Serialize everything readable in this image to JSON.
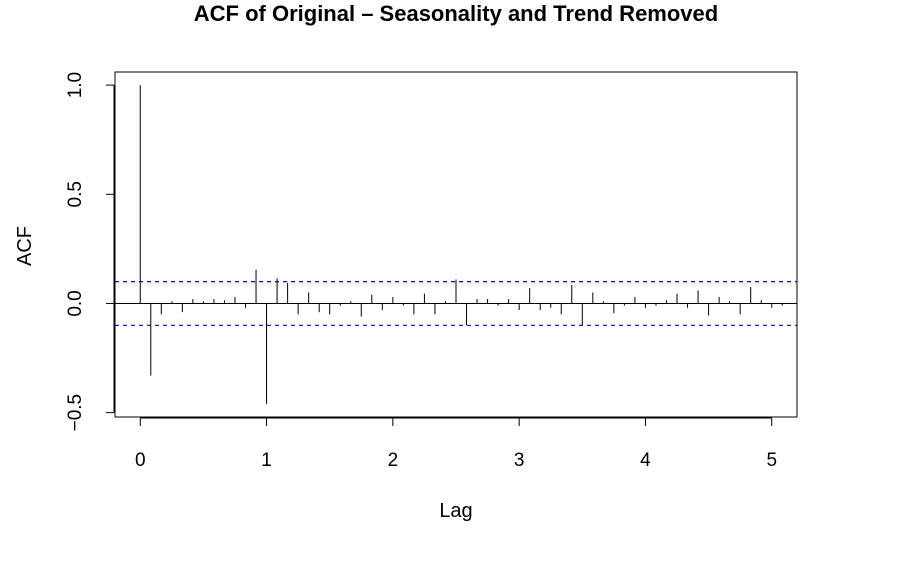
{
  "chart_data": {
    "type": "bar",
    "title": "ACF of Original – Seasonality and Trend Removed",
    "xlabel": "Lag",
    "ylabel": "ACF",
    "xlim": [
      -0.2,
      5.2
    ],
    "ylim": [
      -0.52,
      1.06
    ],
    "x_ticks": [
      0,
      1,
      2,
      3,
      4,
      5
    ],
    "x_tick_labels": [
      "0",
      "1",
      "2",
      "3",
      "4",
      "5"
    ],
    "y_ticks": [
      -0.5,
      0.0,
      0.5,
      1.0
    ],
    "y_tick_labels": [
      "−0.5",
      "0.0",
      "0.5",
      "1.0"
    ],
    "confidence_bounds": [
      0.1,
      -0.1
    ],
    "confidence_color": "#0000cc",
    "lag_step": 0.0833333,
    "values": [
      1.0,
      -0.33,
      -0.05,
      0.01,
      -0.04,
      0.02,
      0.01,
      0.02,
      0.015,
      0.03,
      -0.02,
      0.155,
      -0.46,
      0.115,
      0.095,
      -0.05,
      0.05,
      -0.04,
      -0.05,
      -0.01,
      0.01,
      -0.06,
      0.04,
      -0.03,
      0.03,
      -0.01,
      -0.05,
      0.045,
      -0.05,
      0.01,
      0.11,
      -0.1,
      0.02,
      0.02,
      -0.01,
      0.02,
      -0.03,
      0.07,
      -0.03,
      -0.02,
      -0.05,
      0.085,
      -0.1,
      0.05,
      0.01,
      -0.045,
      -0.01,
      0.03,
      -0.02,
      -0.01,
      0.015,
      0.045,
      -0.02,
      0.06,
      -0.055,
      0.03,
      0.01,
      -0.05,
      0.075,
      0.015,
      -0.02,
      -0.01
    ]
  }
}
